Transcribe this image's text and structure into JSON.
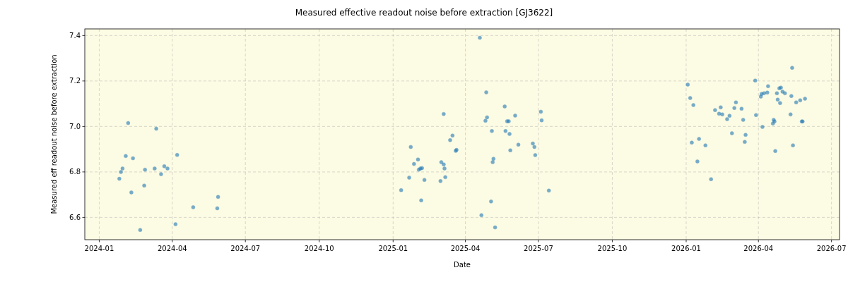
{
  "chart_data": {
    "type": "scatter",
    "title": "Measured effective readout noise before extraction [GJ3622]",
    "xlabel": "Date",
    "ylabel": "Measured eff readout noise before extraction",
    "xlim": [
      "2023-12-14",
      "2026-07-11"
    ],
    "xticks": [
      "2024-01",
      "2024-04",
      "2024-07",
      "2024-10",
      "2025-01",
      "2025-04",
      "2025-07",
      "2025-10",
      "2026-01",
      "2026-04",
      "2026-07"
    ],
    "ylim": [
      6.502,
      7.429
    ],
    "yticks": [
      {
        "value": 6.6,
        "label": "6.6"
      },
      {
        "value": 6.8,
        "label": "6.8"
      },
      {
        "value": 7.0,
        "label": "7.0"
      },
      {
        "value": 7.2,
        "label": "7.2"
      },
      {
        "value": 7.4,
        "label": "7.4"
      }
    ],
    "grid": true,
    "marker": "circle",
    "series": [
      {
        "color": "#1f77b4",
        "x": [
          "2024-01-26",
          "2024-01-28",
          "2024-01-30",
          "2024-02-03",
          "2024-02-06",
          "2024-02-10",
          "2024-02-12",
          "2024-02-21",
          "2024-02-26",
          "2024-02-27",
          "2024-03-10",
          "2024-03-12",
          "2024-03-18",
          "2024-03-22",
          "2024-03-26",
          "2024-04-05",
          "2024-04-07",
          "2024-04-27",
          "2024-05-27",
          "2024-05-28",
          "2025-01-11",
          "2025-01-21",
          "2025-01-23",
          "2025-01-27",
          "2025-02-01",
          "2025-02-02",
          "2025-02-04",
          "2025-02-06",
          "2025-02-05",
          "2025-02-09",
          "2025-03-01",
          "2025-03-02",
          "2025-03-05",
          "2025-03-06",
          "2025-03-05",
          "2025-03-07",
          "2025-03-13",
          "2025-03-16",
          "2025-03-20",
          "2025-03-21",
          "2025-04-19",
          "2025-04-21",
          "2025-04-26",
          "2025-04-27",
          "2025-04-28",
          "2025-05-03",
          "2025-05-04",
          "2025-05-05",
          "2025-05-06",
          "2025-05-08",
          "2025-05-20",
          "2025-05-21",
          "2025-05-23",
          "2025-05-25",
          "2025-05-26",
          "2025-05-27",
          "2025-06-02",
          "2025-06-06",
          "2025-06-24",
          "2025-06-26",
          "2025-06-27",
          "2025-07-04",
          "2025-07-05",
          "2025-07-14",
          "2026-01-03",
          "2026-01-06",
          "2026-01-10",
          "2026-01-08",
          "2026-01-17",
          "2026-01-25",
          "2026-01-15",
          "2026-02-01",
          "2026-02-06",
          "2026-02-13",
          "2026-02-11",
          "2026-02-15",
          "2026-02-21",
          "2026-02-24",
          "2026-02-27",
          "2026-03-02",
          "2026-03-04",
          "2026-03-11",
          "2026-03-13",
          "2026-03-15",
          "2026-03-16",
          "2026-03-28",
          "2026-03-29",
          "2026-04-04",
          "2026-04-05",
          "2026-04-06",
          "2026-04-08",
          "2026-04-12",
          "2026-04-13",
          "2026-04-19",
          "2026-04-20",
          "2026-04-21",
          "2026-04-22",
          "2026-04-24",
          "2026-04-25",
          "2026-04-27",
          "2026-04-29",
          "2026-04-28",
          "2026-05-01",
          "2026-05-04",
          "2026-05-11",
          "2026-05-12",
          "2026-05-13",
          "2026-05-14",
          "2026-05-18",
          "2026-05-23",
          "2026-05-25",
          "2026-05-26",
          "2026-05-29"
        ],
        "values": [
          6.77,
          6.8,
          6.815,
          6.87,
          7.015,
          6.71,
          6.86,
          6.545,
          6.74,
          6.81,
          6.815,
          6.99,
          6.79,
          6.825,
          6.815,
          6.57,
          6.875,
          6.645,
          6.64,
          6.69,
          6.72,
          6.775,
          6.91,
          6.835,
          6.855,
          6.81,
          6.815,
          6.817,
          6.675,
          6.765,
          6.76,
          6.843,
          6.833,
          6.815,
          7.055,
          6.777,
          6.94,
          6.96,
          6.893,
          6.897,
          7.39,
          6.61,
          7.025,
          7.15,
          7.04,
          6.67,
          6.98,
          6.843,
          6.858,
          6.556,
          7.088,
          6.98,
          7.023,
          7.023,
          6.967,
          6.895,
          7.048,
          6.92,
          6.925,
          6.91,
          6.874,
          7.065,
          7.027,
          6.718,
          7.184,
          7.125,
          7.094,
          6.929,
          6.945,
          6.917,
          6.846,
          6.768,
          7.072,
          7.084,
          7.056,
          7.053,
          7.032,
          7.047,
          6.97,
          7.081,
          7.106,
          7.078,
          7.029,
          6.932,
          6.963,
          7.202,
          7.05,
          7.131,
          7.143,
          6.998,
          7.146,
          7.149,
          7.177,
          7.013,
          7.029,
          7.022,
          6.892,
          7.146,
          7.118,
          7.168,
          7.171,
          7.103,
          7.153,
          7.146,
          7.053,
          7.134,
          7.258,
          6.917,
          7.106,
          7.115,
          7.022,
          7.022,
          7.122
        ]
      }
    ]
  }
}
